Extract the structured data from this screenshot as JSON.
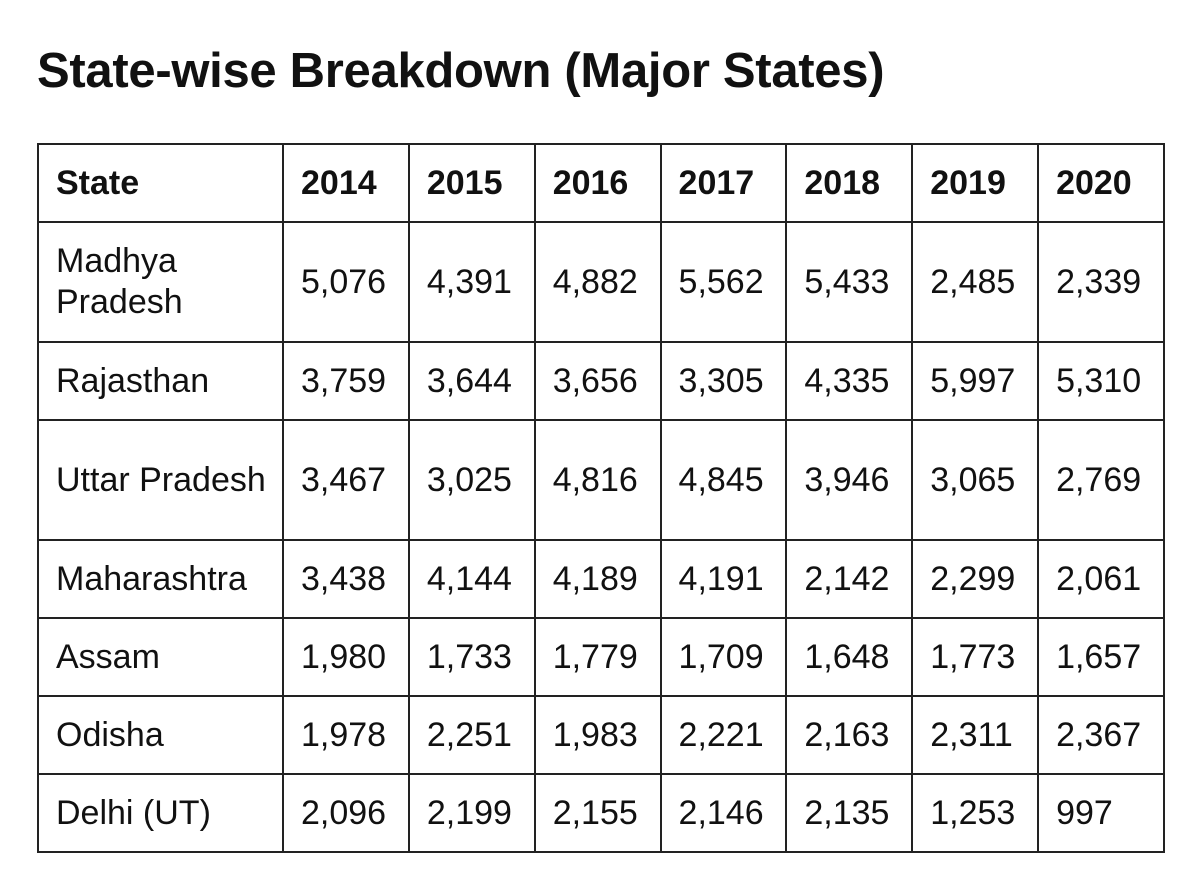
{
  "title": "State-wise Breakdown (Major States)",
  "table": {
    "header": [
      "State",
      "2014",
      "2015",
      "2016",
      "2017",
      "2018",
      "2019",
      "2020"
    ],
    "rows": [
      {
        "state": "Madhya Pradesh",
        "values": [
          "5,076",
          "4,391",
          "4,882",
          "5,562",
          "5,433",
          "2,485",
          "2,339"
        ]
      },
      {
        "state": "Rajasthan",
        "values": [
          "3,759",
          "3,644",
          "3,656",
          "3,305",
          "4,335",
          "5,997",
          "5,310"
        ]
      },
      {
        "state": "Uttar Pradesh",
        "values": [
          "3,467",
          "3,025",
          "4,816",
          "4,845",
          "3,946",
          "3,065",
          "2,769"
        ]
      },
      {
        "state": "Maharashtra",
        "values": [
          "3,438",
          "4,144",
          "4,189",
          "4,191",
          "2,142",
          "2,299",
          "2,061"
        ]
      },
      {
        "state": "Assam",
        "values": [
          "1,980",
          "1,733",
          "1,779",
          "1,709",
          "1,648",
          "1,773",
          "1,657"
        ]
      },
      {
        "state": "Odisha",
        "values": [
          "1,978",
          "2,251",
          "1,983",
          "2,221",
          "2,163",
          "2,311",
          "2,367"
        ]
      },
      {
        "state": "Delhi (UT)",
        "values": [
          "2,096",
          "2,199",
          "2,155",
          "2,146",
          "2,135",
          "1,253",
          "997"
        ]
      }
    ]
  }
}
